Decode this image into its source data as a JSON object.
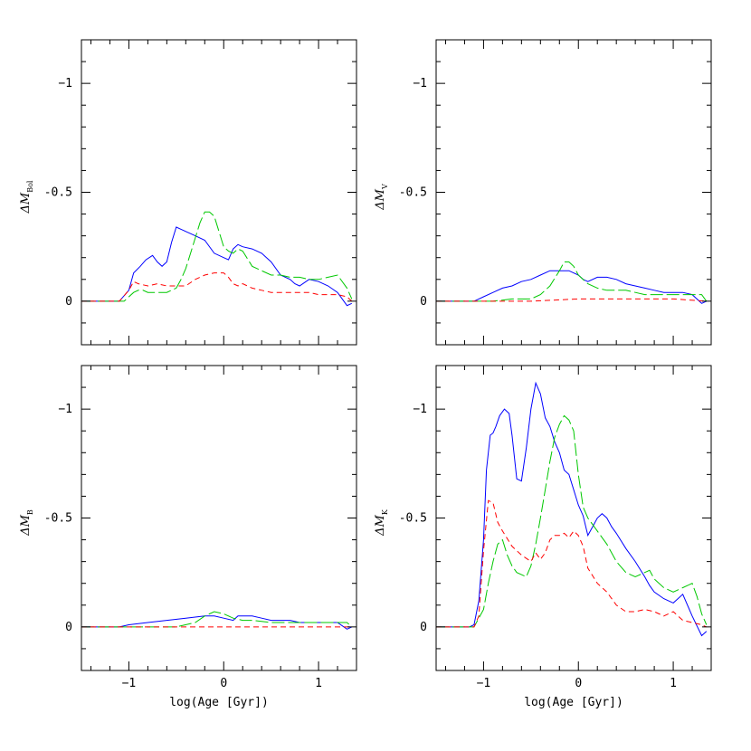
{
  "figure": {
    "xlabel": "log(Age [Gyr])"
  },
  "chart_data": [
    {
      "type": "line",
      "ylabel": "ΔM",
      "ylabel_sub": "Bol",
      "xlim": [
        -1.5,
        1.4
      ],
      "ylim": [
        0.2,
        -1.2
      ],
      "xticks": [
        -1,
        0,
        1
      ],
      "xticklabels": [
        "−1",
        "0",
        "1"
      ],
      "yticks": [
        -1,
        -0.5,
        0
      ],
      "yticklabels": [
        "−1",
        "-0.5",
        "0"
      ],
      "series": [
        {
          "color": "#0000ff",
          "dash": "solid",
          "x": [
            -1.5,
            -1.1,
            -1.0,
            -0.95,
            -0.88,
            -0.82,
            -0.75,
            -0.7,
            -0.65,
            -0.6,
            -0.55,
            -0.5,
            -0.45,
            -0.4,
            -0.3,
            -0.2,
            -0.1,
            0.0,
            0.05,
            0.1,
            0.15,
            0.2,
            0.3,
            0.4,
            0.5,
            0.6,
            0.7,
            0.75,
            0.8,
            0.9,
            1.0,
            1.1,
            1.2,
            1.3,
            1.35
          ],
          "y": [
            0,
            0,
            -0.05,
            -0.13,
            -0.16,
            -0.19,
            -0.21,
            -0.18,
            -0.16,
            -0.18,
            -0.27,
            -0.34,
            -0.33,
            -0.32,
            -0.3,
            -0.28,
            -0.22,
            -0.2,
            -0.19,
            -0.24,
            -0.26,
            -0.25,
            -0.24,
            -0.22,
            -0.18,
            -0.12,
            -0.1,
            -0.08,
            -0.07,
            -0.1,
            -0.09,
            -0.07,
            -0.04,
            0.02,
            0.01
          ]
        },
        {
          "color": "#00c800",
          "dash": "longdash",
          "x": [
            -1.5,
            -1.05,
            -1.0,
            -0.95,
            -0.9,
            -0.85,
            -0.8,
            -0.75,
            -0.7,
            -0.6,
            -0.5,
            -0.45,
            -0.4,
            -0.35,
            -0.3,
            -0.25,
            -0.2,
            -0.15,
            -0.1,
            -0.05,
            0.0,
            0.05,
            0.1,
            0.15,
            0.2,
            0.3,
            0.4,
            0.5,
            0.6,
            0.7,
            0.8,
            0.9,
            1.0,
            1.1,
            1.2,
            1.3,
            1.35
          ],
          "y": [
            0,
            0,
            -0.02,
            -0.04,
            -0.05,
            -0.05,
            -0.04,
            -0.04,
            -0.04,
            -0.04,
            -0.06,
            -0.1,
            -0.15,
            -0.22,
            -0.29,
            -0.36,
            -0.41,
            -0.41,
            -0.39,
            -0.32,
            -0.25,
            -0.23,
            -0.22,
            -0.24,
            -0.23,
            -0.16,
            -0.14,
            -0.12,
            -0.12,
            -0.11,
            -0.11,
            -0.1,
            -0.1,
            -0.11,
            -0.12,
            -0.06,
            -0.01
          ]
        },
        {
          "color": "#ff0000",
          "dash": "dash",
          "x": [
            -1.5,
            -1.1,
            -1.0,
            -0.95,
            -0.9,
            -0.8,
            -0.7,
            -0.6,
            -0.5,
            -0.4,
            -0.3,
            -0.2,
            -0.1,
            0.0,
            0.05,
            0.1,
            0.15,
            0.2,
            0.3,
            0.4,
            0.5,
            0.6,
            0.7,
            0.8,
            0.9,
            1.0,
            1.1,
            1.2,
            1.3,
            1.35
          ],
          "y": [
            0,
            0,
            -0.05,
            -0.09,
            -0.08,
            -0.07,
            -0.08,
            -0.07,
            -0.07,
            -0.07,
            -0.1,
            -0.12,
            -0.13,
            -0.13,
            -0.11,
            -0.08,
            -0.07,
            -0.08,
            -0.06,
            -0.05,
            -0.04,
            -0.04,
            -0.04,
            -0.04,
            -0.04,
            -0.03,
            -0.03,
            -0.03,
            -0.02,
            0
          ]
        }
      ]
    },
    {
      "type": "line",
      "ylabel": "ΔM",
      "ylabel_sub": "V",
      "xlim": [
        -1.5,
        1.4
      ],
      "ylim": [
        0.2,
        -1.2
      ],
      "xticks": [
        -1,
        0,
        1
      ],
      "xticklabels": [
        "−1",
        "0",
        "1"
      ],
      "yticks": [
        -1,
        -0.5,
        0
      ],
      "yticklabels": [
        "−1",
        "-0.5",
        "0"
      ],
      "series": [
        {
          "color": "#0000ff",
          "dash": "solid",
          "x": [
            -1.5,
            -1.1,
            -1.0,
            -0.9,
            -0.8,
            -0.7,
            -0.6,
            -0.5,
            -0.4,
            -0.3,
            -0.2,
            -0.1,
            0.0,
            0.05,
            0.1,
            0.2,
            0.3,
            0.4,
            0.5,
            0.6,
            0.7,
            0.8,
            0.9,
            1.0,
            1.1,
            1.2,
            1.3,
            1.35
          ],
          "y": [
            0,
            0,
            -0.02,
            -0.04,
            -0.06,
            -0.07,
            -0.09,
            -0.1,
            -0.12,
            -0.14,
            -0.14,
            -0.14,
            -0.12,
            -0.1,
            -0.09,
            -0.11,
            -0.11,
            -0.1,
            -0.08,
            -0.07,
            -0.06,
            -0.05,
            -0.04,
            -0.04,
            -0.04,
            -0.03,
            0.01,
            0
          ]
        },
        {
          "color": "#00c800",
          "dash": "longdash",
          "x": [
            -1.5,
            -1.0,
            -0.9,
            -0.7,
            -0.5,
            -0.4,
            -0.3,
            -0.2,
            -0.15,
            -0.1,
            -0.05,
            0.0,
            0.1,
            0.2,
            0.3,
            0.4,
            0.5,
            0.6,
            0.7,
            0.8,
            0.9,
            1.0,
            1.1,
            1.2,
            1.3,
            1.35
          ],
          "y": [
            0,
            0,
            0,
            -0.01,
            -0.01,
            -0.03,
            -0.07,
            -0.14,
            -0.18,
            -0.18,
            -0.16,
            -0.12,
            -0.08,
            -0.06,
            -0.05,
            -0.05,
            -0.05,
            -0.04,
            -0.03,
            -0.03,
            -0.03,
            -0.03,
            -0.03,
            -0.03,
            -0.03,
            0
          ]
        },
        {
          "color": "#ff0000",
          "dash": "dash",
          "x": [
            -1.5,
            -1.0,
            -0.5,
            0.0,
            0.5,
            1.0,
            1.35
          ],
          "y": [
            0,
            0,
            0,
            -0.01,
            -0.01,
            -0.01,
            0
          ]
        }
      ]
    },
    {
      "type": "line",
      "ylabel": "ΔM",
      "ylabel_sub": "B",
      "xlim": [
        -1.5,
        1.4
      ],
      "ylim": [
        0.2,
        -1.2
      ],
      "xticks": [
        -1,
        0,
        1
      ],
      "xticklabels": [
        "−1",
        "0",
        "1"
      ],
      "yticks": [
        -1,
        -0.5,
        0
      ],
      "yticklabels": [
        "−1",
        "-0.5",
        "0"
      ],
      "series": [
        {
          "color": "#0000ff",
          "dash": "solid",
          "x": [
            -1.5,
            -1.1,
            -1.0,
            -0.8,
            -0.6,
            -0.4,
            -0.2,
            -0.1,
            0.0,
            0.1,
            0.15,
            0.2,
            0.3,
            0.4,
            0.5,
            0.6,
            0.7,
            0.8,
            0.9,
            1.0,
            1.1,
            1.2,
            1.3,
            1.35
          ],
          "y": [
            0,
            0,
            -0.01,
            -0.02,
            -0.03,
            -0.04,
            -0.05,
            -0.05,
            -0.04,
            -0.03,
            -0.05,
            -0.05,
            -0.05,
            -0.04,
            -0.03,
            -0.03,
            -0.03,
            -0.02,
            -0.02,
            -0.02,
            -0.02,
            -0.02,
            0.01,
            0
          ]
        },
        {
          "color": "#00c800",
          "dash": "longdash",
          "x": [
            -1.5,
            -0.8,
            -0.5,
            -0.3,
            -0.2,
            -0.1,
            0.0,
            0.1,
            0.2,
            0.3,
            0.5,
            0.7,
            0.9,
            1.1,
            1.3,
            1.35
          ],
          "y": [
            0,
            0,
            0,
            -0.02,
            -0.05,
            -0.07,
            -0.06,
            -0.04,
            -0.03,
            -0.03,
            -0.02,
            -0.02,
            -0.02,
            -0.02,
            -0.02,
            0
          ]
        },
        {
          "color": "#ff0000",
          "dash": "dash",
          "x": [
            -1.5,
            -0.5,
            0.0,
            0.5,
            1.0,
            1.35
          ],
          "y": [
            0,
            0,
            0,
            0,
            0,
            0
          ]
        }
      ]
    },
    {
      "type": "line",
      "ylabel": "ΔM",
      "ylabel_sub": "K",
      "xlim": [
        -1.5,
        1.4
      ],
      "ylim": [
        0.2,
        -1.2
      ],
      "xticks": [
        -1,
        0,
        1
      ],
      "xticklabels": [
        "−1",
        "0",
        "1"
      ],
      "yticks": [
        -1,
        -0.5,
        0
      ],
      "yticklabels": [
        "−1",
        "-0.5",
        "0"
      ],
      "series": [
        {
          "color": "#0000ff",
          "dash": "solid",
          "x": [
            -1.5,
            -1.15,
            -1.1,
            -1.05,
            -1.0,
            -0.97,
            -0.93,
            -0.9,
            -0.87,
            -0.83,
            -0.78,
            -0.73,
            -0.7,
            -0.65,
            -0.6,
            -0.55,
            -0.5,
            -0.45,
            -0.4,
            -0.35,
            -0.3,
            -0.25,
            -0.2,
            -0.15,
            -0.1,
            -0.05,
            0.0,
            0.05,
            0.1,
            0.15,
            0.2,
            0.25,
            0.3,
            0.35,
            0.4,
            0.5,
            0.6,
            0.7,
            0.75,
            0.8,
            0.9,
            1.0,
            1.05,
            1.1,
            1.2,
            1.3,
            1.35
          ],
          "y": [
            0,
            0,
            -0.01,
            -0.12,
            -0.4,
            -0.72,
            -0.88,
            -0.89,
            -0.92,
            -0.97,
            -1.0,
            -0.98,
            -0.88,
            -0.68,
            -0.67,
            -0.82,
            -1.0,
            -1.12,
            -1.07,
            -0.96,
            -0.92,
            -0.85,
            -0.8,
            -0.72,
            -0.7,
            -0.63,
            -0.56,
            -0.51,
            -0.42,
            -0.46,
            -0.5,
            -0.52,
            -0.5,
            -0.46,
            -0.43,
            -0.36,
            -0.3,
            -0.23,
            -0.19,
            -0.16,
            -0.13,
            -0.11,
            -0.13,
            -0.15,
            -0.05,
            0.04,
            0.02
          ]
        },
        {
          "color": "#00c800",
          "dash": "longdash",
          "x": [
            -1.5,
            -1.1,
            -1.0,
            -0.95,
            -0.9,
            -0.85,
            -0.8,
            -0.75,
            -0.7,
            -0.65,
            -0.6,
            -0.55,
            -0.5,
            -0.45,
            -0.4,
            -0.35,
            -0.3,
            -0.25,
            -0.2,
            -0.15,
            -0.1,
            -0.05,
            0.0,
            0.05,
            0.1,
            0.2,
            0.3,
            0.4,
            0.5,
            0.6,
            0.7,
            0.75,
            0.8,
            0.9,
            1.0,
            1.1,
            1.2,
            1.25,
            1.3,
            1.35
          ],
          "y": [
            0,
            0,
            -0.08,
            -0.2,
            -0.3,
            -0.38,
            -0.4,
            -0.33,
            -0.28,
            -0.25,
            -0.24,
            -0.23,
            -0.28,
            -0.38,
            -0.5,
            -0.63,
            -0.76,
            -0.87,
            -0.93,
            -0.97,
            -0.95,
            -0.9,
            -0.7,
            -0.55,
            -0.5,
            -0.44,
            -0.38,
            -0.3,
            -0.25,
            -0.23,
            -0.25,
            -0.26,
            -0.22,
            -0.18,
            -0.16,
            -0.18,
            -0.2,
            -0.14,
            -0.06,
            -0.01
          ]
        },
        {
          "color": "#ff0000",
          "dash": "dash",
          "x": [
            -1.5,
            -1.1,
            -1.05,
            -1.0,
            -0.95,
            -0.9,
            -0.85,
            -0.8,
            -0.7,
            -0.6,
            -0.5,
            -0.45,
            -0.4,
            -0.35,
            -0.3,
            -0.25,
            -0.2,
            -0.15,
            -0.1,
            -0.05,
            0.0,
            0.05,
            0.1,
            0.2,
            0.3,
            0.4,
            0.5,
            0.6,
            0.7,
            0.8,
            0.9,
            1.0,
            1.1,
            1.2,
            1.3,
            1.35
          ],
          "y": [
            0,
            0,
            -0.05,
            -0.35,
            -0.58,
            -0.57,
            -0.48,
            -0.44,
            -0.37,
            -0.33,
            -0.3,
            -0.34,
            -0.31,
            -0.34,
            -0.4,
            -0.42,
            -0.42,
            -0.43,
            -0.41,
            -0.44,
            -0.42,
            -0.37,
            -0.27,
            -0.2,
            -0.16,
            -0.1,
            -0.07,
            -0.07,
            -0.08,
            -0.07,
            -0.05,
            -0.07,
            -0.03,
            -0.02,
            -0.01,
            0
          ]
        }
      ]
    }
  ]
}
